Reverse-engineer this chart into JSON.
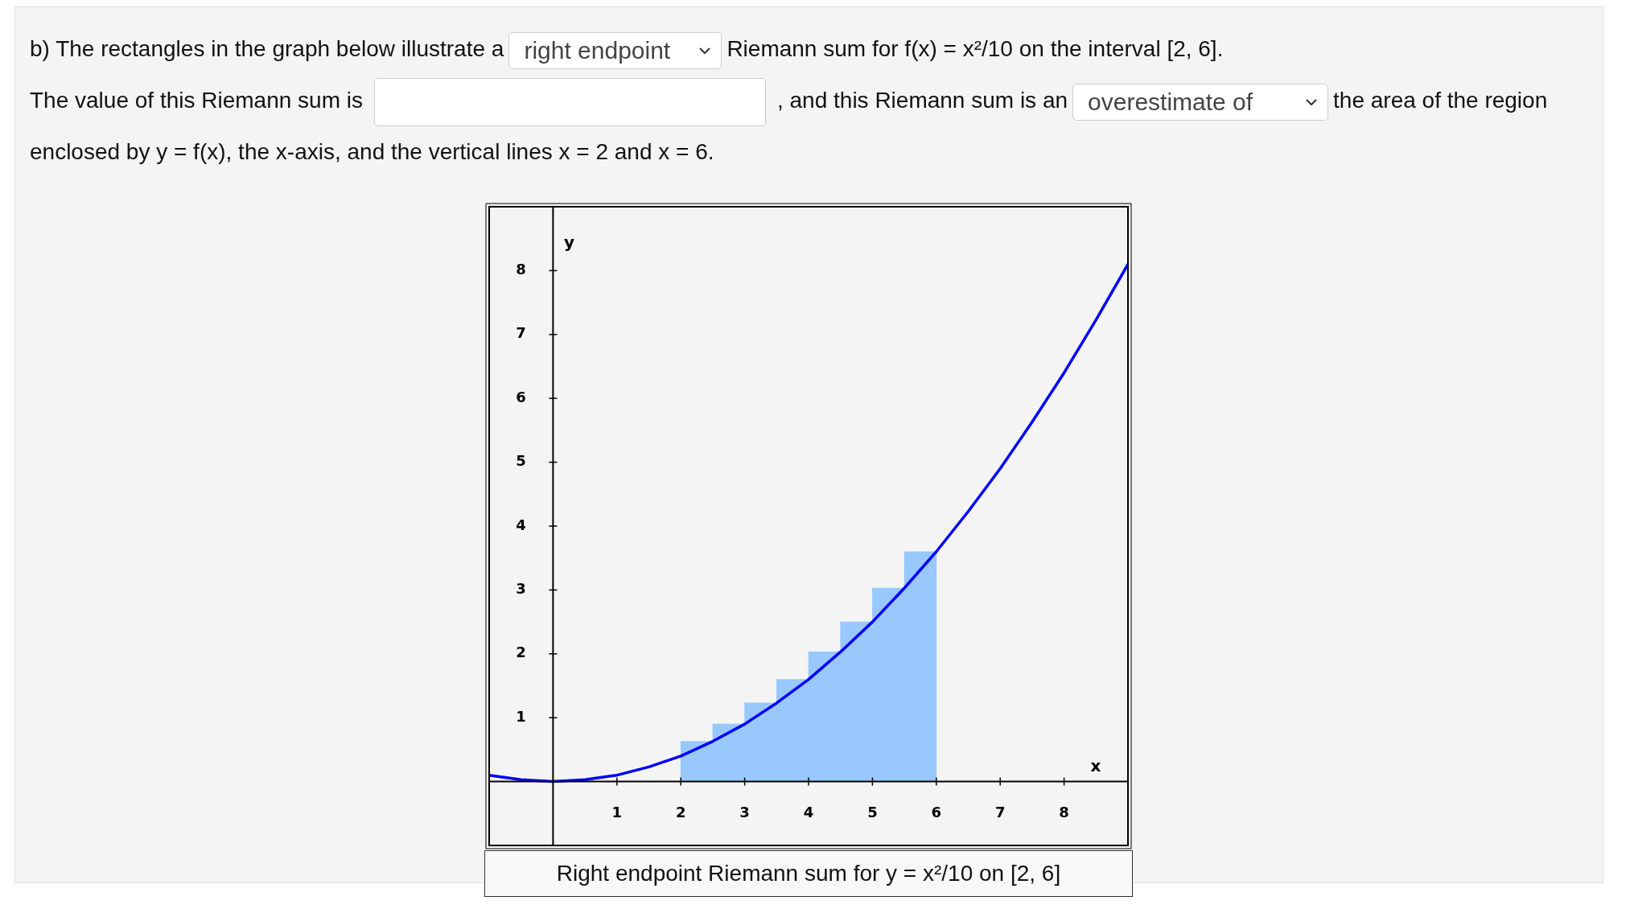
{
  "chart_data": {
    "type": "bar",
    "title": "Right endpoint Riemann sum for y = x²/10 on [2, 6]",
    "xlabel": "x",
    "ylabel": "y",
    "annotations": [
      "b) The rectangles in the graph below illustrate a",
      "right endpoint",
      "Riemann sum for f(x) = x²/10 on the interval [2, 6].",
      "The value of this Riemann sum is",
      ", and this Riemann sum is an",
      "overestimate of",
      "the area of the region enclosed by y = f(x), the x-axis, and the vertical lines x = 2 and x = 6."
    ],
    "series": [
      {
        "color": "#99c8ff",
        "x": [
          2.25,
          2.75,
          3.25,
          3.75,
          4.25,
          4.75,
          5.25,
          5.75
        ],
        "values": [
          0.63,
          0.9,
          1.23,
          1.6,
          2.03,
          2.5,
          3.03,
          3.6
        ]
      },
      {
        "type": "line",
        "color": "#0000ff",
        "x": [
          -1,
          -0.5,
          0,
          0.5,
          1,
          1.5,
          2,
          2.5,
          3,
          3.5,
          4,
          4.5,
          5,
          5.5,
          6,
          6.5,
          7,
          7.5,
          8,
          8.5,
          9
        ],
        "values": [
          0.1,
          0.03,
          0,
          0.03,
          0.1,
          0.23,
          0.4,
          0.63,
          0.9,
          1.23,
          1.6,
          2.03,
          2.5,
          3.03,
          3.6,
          4.23,
          4.9,
          5.63,
          6.4,
          7.23,
          8.1
        ]
      }
    ],
    "xlim": [
      -1,
      9
    ],
    "ylim": [
      -1,
      9
    ],
    "xticks": [
      1,
      2,
      3,
      4,
      5,
      6,
      7,
      8
    ],
    "yticks": [
      1,
      2,
      3,
      4,
      5,
      6,
      7,
      8
    ],
    "legend": false,
    "marker": "none",
    "line_style": "solid"
  }
}
